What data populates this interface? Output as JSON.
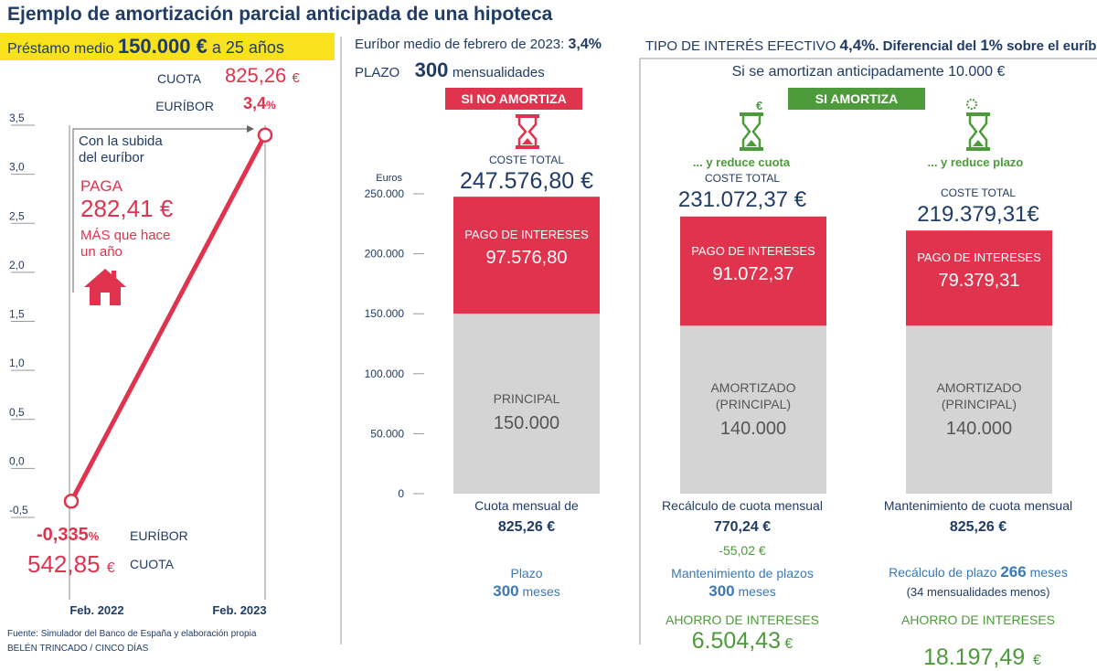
{
  "title": "Ejemplo de amortización parcial anticipada de una hipoteca",
  "loan": {
    "prefix": "Préstamo medio ",
    "amount": "150.000 €",
    "suffix": " a 25 años"
  },
  "header": {
    "euribor_label": "Euríbor medio de febrero de 2023: ",
    "euribor_value": "3,4%",
    "plazo_label": "PLAZO",
    "plazo_value": "300",
    "plazo_unit": "mensualidades",
    "tipo_label": "TIPO DE INTERÉS EFECTIVO ",
    "tipo_value": "4,4%",
    "tipo_suffix": ". Diferencial del ",
    "tipo_diff": "1%",
    "tipo_end": " sobre el euríbor",
    "si_amortiza_note": "Si se amortizan anticipadamente 10.000 €",
    "banner_no": "SI NO AMORTIZA",
    "banner_si": "SI AMORTIZA"
  },
  "left_panel": {
    "top_cuota_label": "CUOTA",
    "top_cuota_value": "825,26",
    "top_cuota_unit": "€",
    "top_euribor_label": "EURÍBOR",
    "top_euribor_value": "3,4",
    "top_euribor_unit": "%",
    "annot_line1": "Con la subida",
    "annot_line2": "del euríbor",
    "paga": "PAGA",
    "paga_value": "282,41 €",
    "mas_line1": "MÁS que hace",
    "mas_line2": "un año",
    "bottom_euribor_value": "-0,335",
    "bottom_euribor_unit": "%",
    "bottom_euribor_label": "EURÍBOR",
    "bottom_cuota_value": "542,85",
    "bottom_cuota_unit": "€",
    "bottom_cuota_label": "CUOTA"
  },
  "columns": [
    {
      "subtitle": "",
      "coste_label": "COSTE TOTAL",
      "coste_value": "247.576,80 €",
      "interest_label": "PAGO DE INTERESES",
      "interest_value": "97.576,80",
      "principal_label1": "PRINCIPAL",
      "principal_label2": "",
      "principal_value": "150.000",
      "foot1": "Cuota mensual de",
      "foot2": "825,26 €",
      "foot3": "",
      "foot4": "Plazo",
      "foot5_num": "300",
      "foot5_unit": " meses",
      "foot6": "",
      "ahorro_label": "",
      "ahorro_value": "",
      "ahorro_unit": ""
    },
    {
      "subtitle": "... y reduce cuota",
      "coste_label": "COSTE TOTAL",
      "coste_value": "231.072,37 €",
      "interest_label": "PAGO DE INTERESES",
      "interest_value": "91.072,37",
      "principal_label1": "AMORTIZADO",
      "principal_label2": "(PRINCIPAL)",
      "principal_value": "140.000",
      "foot1": "Recálculo de cuota mensual",
      "foot2": "770,24 €",
      "foot3": "-55,02 €",
      "foot4": "Mantenimiento de plazos",
      "foot5_num": "300",
      "foot5_unit": " meses",
      "foot6": "",
      "ahorro_label": "AHORRO DE INTERESES",
      "ahorro_value": "6.504,43",
      "ahorro_unit": " €"
    },
    {
      "subtitle": "... y reduce plazo",
      "coste_label": "COSTE TOTAL",
      "coste_value": "219.379,31€",
      "interest_label": "PAGO DE INTERESES",
      "interest_value": "79.379,31",
      "principal_label1": "AMORTIZADO",
      "principal_label2": "(PRINCIPAL)",
      "principal_value": "140.000",
      "foot1": "Mantenimiento de cuota mensual",
      "foot2": "825,26 €",
      "foot3": "",
      "foot4": "Recálculo de plazo ",
      "foot5_num": "266",
      "foot5_unit": " meses",
      "foot6": "(34 mensualidades menos)",
      "ahorro_label": "AHORRO DE INTERESES",
      "ahorro_value": "18.197,49",
      "ahorro_unit": "  €"
    }
  ],
  "source_line1": "Fuente: Simulador del Banco de España y elaboración propia",
  "source_line2": "BELÉN TRINCADO / CINCO DÍAS",
  "icons": [
    "hourglass-icon",
    "hourglass-euro-icon",
    "hourglass-gear-icon",
    "house-icon"
  ],
  "colors": {
    "interest": "#e0344e",
    "principal": "#d4d4d4",
    "line": "#e0344e",
    "banner_no": "#e0344e",
    "banner_si": "#4d9a3a",
    "highlight": "#f7e21c"
  },
  "chart_data": [
    {
      "type": "line",
      "title": "",
      "x": [
        "Feb. 2022",
        "Feb. 2023"
      ],
      "series": [
        {
          "name": "",
          "values": [
            -0.335,
            3.4
          ]
        }
      ],
      "ylim": [
        -0.5,
        3.5
      ],
      "yticks": [
        -0.5,
        0,
        0.5,
        1,
        1.5,
        2,
        2.5,
        3,
        3.5
      ],
      "ytick_labels": [
        "-0,5",
        "0,0",
        "0,5",
        "1,0",
        "1,5",
        "2,0",
        "2,5",
        "3,0",
        "3,5"
      ],
      "grid": false
    },
    {
      "type": "bar",
      "stacked": true,
      "ylabel": "Euros",
      "ylim": [
        0,
        250000
      ],
      "yticks": [
        0,
        50000,
        100000,
        150000,
        200000,
        250000
      ],
      "ytick_labels": [
        "0",
        "50.000",
        "100.000",
        "150.000",
        "200.000",
        "250.000"
      ],
      "categories": [
        "Si no amortiza",
        "... y reduce cuota",
        "... y reduce plazo"
      ],
      "series": [
        {
          "name": "",
          "values": [
            150000,
            140000,
            140000
          ]
        },
        {
          "name": "",
          "values": [
            97576.8,
            91072.37,
            79379.31
          ]
        }
      ]
    }
  ]
}
